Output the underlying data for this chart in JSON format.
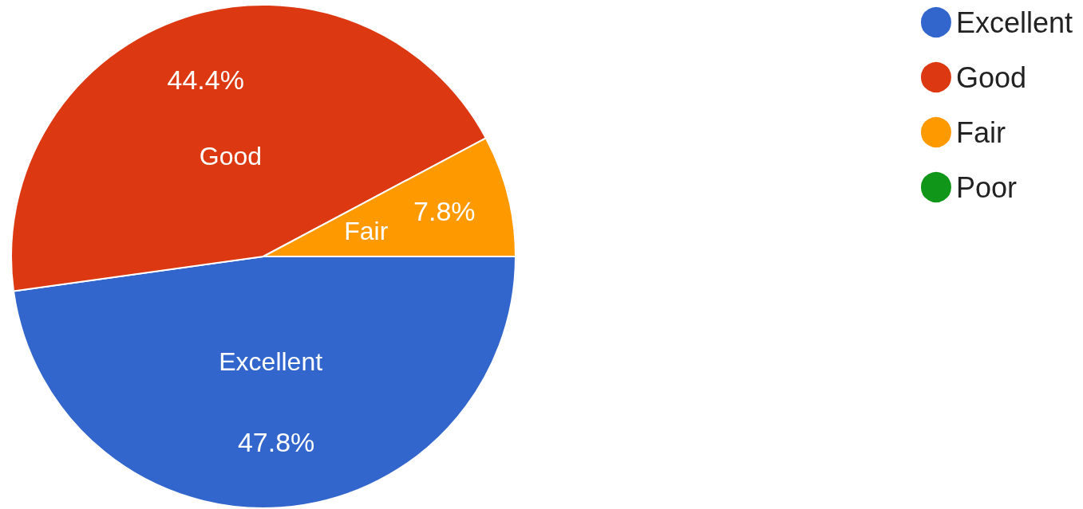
{
  "chart_data": {
    "type": "pie",
    "categories": [
      "Excellent",
      "Good",
      "Fair",
      "Poor"
    ],
    "values": [
      47.8,
      44.4,
      7.8,
      0
    ],
    "colors": [
      "#3366cc",
      "#dc3912",
      "#ff9900",
      "#109618"
    ],
    "value_labels": [
      "47.8%",
      "44.4%",
      "7.8%",
      null
    ],
    "legend": "top right"
  }
}
